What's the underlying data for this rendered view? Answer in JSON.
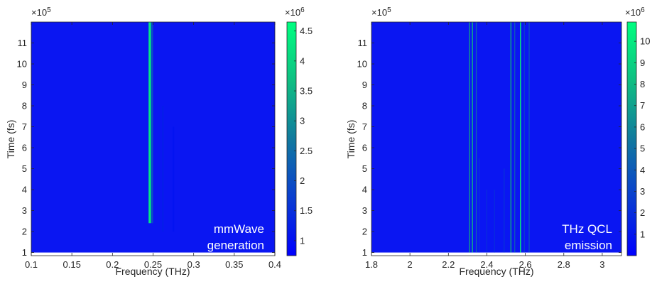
{
  "chart_data": [
    {
      "type": "heatmap",
      "id": "left",
      "xlabel": "Frequency (THz)",
      "ylabel": "Time (fs)",
      "xlim": [
        0.1,
        0.4
      ],
      "ylim": [
        0.85,
        12.0
      ],
      "x_ticks": [
        0.1,
        0.15,
        0.2,
        0.25,
        0.3,
        0.35,
        0.4
      ],
      "x_tick_labels": [
        "0.1",
        "0.15",
        "0.2",
        "0.25",
        "0.3",
        "0.35",
        "0.4"
      ],
      "y_ticks": [
        1,
        2,
        3,
        4,
        5,
        6,
        7,
        8,
        9,
        10,
        11
      ],
      "y_tick_labels": [
        "1",
        "2",
        "3",
        "4",
        "5",
        "6",
        "7",
        "8",
        "9",
        "10",
        "11"
      ],
      "y_multiplier_base": "×10",
      "y_multiplier_exp": "5",
      "data_start_y": 1.0,
      "colorbar": {
        "range": [
          0.75,
          4.65
        ],
        "ticks": [
          1,
          1.5,
          2,
          2.5,
          3,
          3.5,
          4,
          4.5
        ],
        "tick_labels": [
          "1",
          "1.5",
          "2",
          "2.5",
          "3",
          "3.5",
          "4",
          "4.5"
        ],
        "multiplier_base": "×10",
        "multiplier_exp": "6"
      },
      "lines": [
        {
          "x": 0.246,
          "value": 4.3,
          "width": 0.003,
          "y_start": 2.4,
          "y_end": 12.0
        },
        {
          "x": 0.249,
          "value": 2.0,
          "width": 0.002,
          "y_start": 2.4,
          "y_end": 12.0
        },
        {
          "x": 0.262,
          "value": 1.2,
          "width": 0.002,
          "y_start": 2.0,
          "y_end": 8.0
        },
        {
          "x": 0.275,
          "value": 1.05,
          "width": 0.002,
          "y_start": 2.0,
          "y_end": 7.0
        }
      ],
      "annotation": [
        "mmWave",
        "generation"
      ]
    },
    {
      "type": "heatmap",
      "id": "right",
      "xlabel": "Frequency (THz)",
      "ylabel": "Time (fs)",
      "xlim": [
        1.8,
        3.1
      ],
      "ylim": [
        0.85,
        12.0
      ],
      "x_ticks": [
        1.8,
        2.0,
        2.2,
        2.4,
        2.6,
        2.8,
        3.0
      ],
      "x_tick_labels": [
        "1.8",
        "2",
        "2.2",
        "2.4",
        "2.6",
        "2.8",
        "3"
      ],
      "y_ticks": [
        1,
        2,
        3,
        4,
        5,
        6,
        7,
        8,
        9,
        10,
        11
      ],
      "y_tick_labels": [
        "1",
        "2",
        "3",
        "4",
        "5",
        "6",
        "7",
        "8",
        "9",
        "10",
        "11"
      ],
      "y_multiplier_base": "×10",
      "y_multiplier_exp": "5",
      "data_start_y": 1.0,
      "colorbar": {
        "range": [
          0.0,
          10.9
        ],
        "ticks": [
          1,
          2,
          3,
          4,
          5,
          6,
          7,
          8,
          9,
          10
        ],
        "tick_labels": [
          "1",
          "2",
          "3",
          "4",
          "5",
          "6",
          "7",
          "8",
          "9",
          "10"
        ],
        "multiplier_base": "×10",
        "multiplier_exp": "6"
      },
      "lines": [
        {
          "x": 2.31,
          "value": 6.0,
          "width": 0.006,
          "y_start": 1.0,
          "y_end": 12.0
        },
        {
          "x": 2.325,
          "value": 7.0,
          "width": 0.006,
          "y_start": 1.0,
          "y_end": 12.0
        },
        {
          "x": 2.345,
          "value": 4.5,
          "width": 0.005,
          "y_start": 1.0,
          "y_end": 12.0
        },
        {
          "x": 2.36,
          "value": 2.5,
          "width": 0.004,
          "y_start": 1.0,
          "y_end": 5.5
        },
        {
          "x": 2.4,
          "value": 2.0,
          "width": 0.004,
          "y_start": 1.0,
          "y_end": 4.0
        },
        {
          "x": 2.44,
          "value": 2.0,
          "width": 0.004,
          "y_start": 1.0,
          "y_end": 4.0
        },
        {
          "x": 2.49,
          "value": 2.5,
          "width": 0.004,
          "y_start": 1.0,
          "y_end": 5.0
        },
        {
          "x": 2.525,
          "value": 6.5,
          "width": 0.006,
          "y_start": 1.0,
          "y_end": 12.0
        },
        {
          "x": 2.545,
          "value": 4.0,
          "width": 0.005,
          "y_start": 1.0,
          "y_end": 12.0
        },
        {
          "x": 2.575,
          "value": 9.5,
          "width": 0.006,
          "y_start": 1.0,
          "y_end": 12.0
        },
        {
          "x": 2.595,
          "value": 3.0,
          "width": 0.004,
          "y_start": 1.0,
          "y_end": 12.0
        },
        {
          "x": 2.62,
          "value": 3.5,
          "width": 0.005,
          "y_start": 1.0,
          "y_end": 12.0
        }
      ],
      "annotation": [
        "THz QCL",
        "emission"
      ]
    }
  ]
}
